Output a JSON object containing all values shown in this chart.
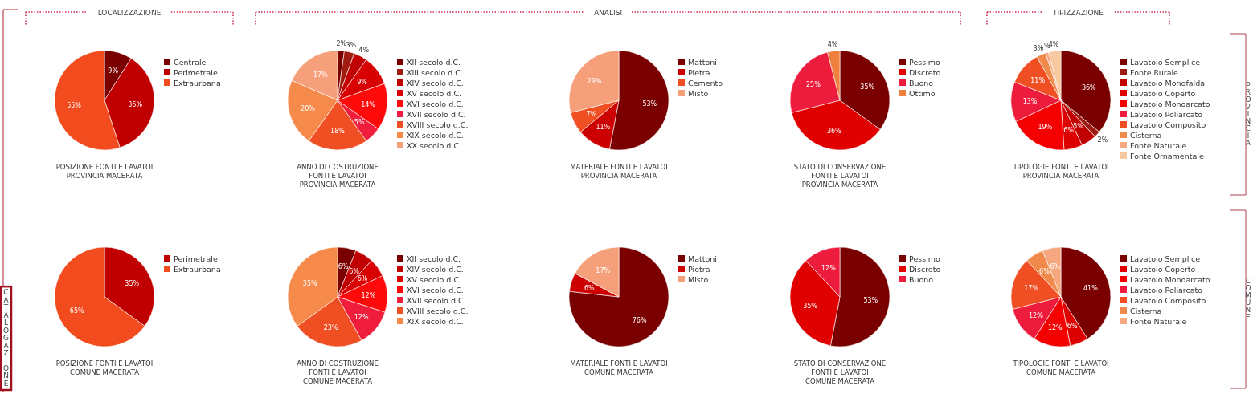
{
  "chart_data": [
    {
      "type": "pie",
      "title": "POSIZIONE FONTI E LAVATOI\nPROVINCIA MACERATA",
      "annotations": [
        "LOCALIZZAZIONE",
        "CATALOGAZIONE"
      ],
      "legend": "right",
      "categories": [
        "Centrale",
        "Perimetrale",
        "Extraurbana"
      ],
      "values": [
        9,
        36,
        55
      ],
      "value_labels": [
        "9%",
        "36%",
        "55%"
      ],
      "colors": [
        "#7a0000",
        "#c00000",
        "#f24b1e"
      ]
    },
    {
      "type": "pie",
      "title": "ANNO DI COSTRUZIONE\nFONTI E LAVATOI\nPROVINCIA MACERATA",
      "annotations": [
        "ANALISI"
      ],
      "legend": "right",
      "categories": [
        "XII secolo d.C.",
        "XIII secolo d.C.",
        "XIV secolo d.C.",
        "XV secolo d.C.",
        "XVI secolo d.C.",
        "XVII secolo d.C.",
        "XVIII secolo d.C.",
        "XIX secolo d.C.",
        "XX secolo d.C."
      ],
      "values": [
        2,
        3,
        4,
        9,
        14,
        5,
        18,
        20,
        17
      ],
      "value_labels": [
        "2%",
        "3%",
        "4%",
        "9%",
        "14%",
        "5%",
        "18%",
        "20%",
        "17%"
      ],
      "colors": [
        "#7a0000",
        "#a01c10",
        "#c00000",
        "#d80000",
        "#ff0a0a",
        "#f01e3c",
        "#f04e23",
        "#f58a4b",
        "#f5a07a"
      ]
    },
    {
      "type": "pie",
      "title": "MATERIALE FONTI E LAVATOI\nPROVINCIA MACERATA",
      "legend": "right",
      "categories": [
        "Mattoni",
        "Pietra",
        "Cemento",
        "Misto"
      ],
      "values": [
        53,
        11,
        7,
        29
      ],
      "value_labels": [
        "53%",
        "11%",
        "7%",
        "29%"
      ],
      "colors": [
        "#7a0000",
        "#cc0000",
        "#f04e23",
        "#f5a07a"
      ]
    },
    {
      "type": "pie",
      "title": "STATO DI CONSERVAZIONE\nFONTI E LAVATOI\nPROVINCIA MACERATA",
      "legend": "right",
      "categories": [
        "Pessimo",
        "Discreto",
        "Buono",
        "Ottimo"
      ],
      "values": [
        35,
        36,
        25,
        4
      ],
      "value_labels": [
        "35%",
        "36%",
        "25%",
        "4%"
      ],
      "colors": [
        "#7a0000",
        "#e00000",
        "#ee1c3c",
        "#f08040"
      ]
    },
    {
      "type": "pie",
      "title": "TIPOLOGIE FONTI E LAVATOI\nPROVINCIA MACERATA",
      "annotations": [
        "TIPIZZAZIONE",
        "PROVINCIA"
      ],
      "legend": "right",
      "categories": [
        "Lavatoio Semplice",
        "Fonte Rurale",
        "Lavatoio Monofalda",
        "Lavatoio Coperto",
        "Lavatoio Monoarcato",
        "Lavatoio Poliarcato",
        "Lavatoio Composito",
        "Cisterna",
        "Fonte Naturale",
        "Fonte Ornamentale"
      ],
      "values": [
        36,
        2,
        5,
        6,
        19,
        13,
        11,
        3,
        1,
        4
      ],
      "value_labels": [
        "36%",
        "2%",
        "5%",
        "6%",
        "19%",
        "13%",
        "11%",
        "3%",
        "1%",
        "4%"
      ],
      "colors": [
        "#7a0000",
        "#9b1b12",
        "#c00000",
        "#dc0000",
        "#f50000",
        "#ee1c3c",
        "#f04e23",
        "#f08a4b",
        "#f5a880",
        "#f8c8a0"
      ]
    },
    {
      "type": "pie",
      "title": "POSIZIONE FONTI E LAVATOI\nCOMUNE MACERATA",
      "legend": "right",
      "categories": [
        "Perimetrale",
        "Extraurbana"
      ],
      "values": [
        35,
        65
      ],
      "value_labels": [
        "35%",
        "65%"
      ],
      "colors": [
        "#c00000",
        "#f24b1e"
      ]
    },
    {
      "type": "pie",
      "title": "ANNO DI COSTRUZIONE\nFONTI E LAVATOI\nCOMUNE MACERATA",
      "legend": "right",
      "categories": [
        "XII secolo d.C.",
        "XIV secolo d.C.",
        "XV secolo d.C.",
        "XVI secolo d.C.",
        "XVII secolo d.C.",
        "XVIII secolo d.C.",
        "XIX secolo d.C."
      ],
      "values": [
        6,
        6,
        6,
        12,
        12,
        23,
        35
      ],
      "value_labels": [
        "6%",
        "6%",
        "6%",
        "12%",
        "12%",
        "23%",
        "35%"
      ],
      "colors": [
        "#7a0000",
        "#c00000",
        "#d80000",
        "#ff0a0a",
        "#f01e3c",
        "#f04e23",
        "#f58a4b"
      ]
    },
    {
      "type": "pie",
      "title": "MATERIALE FONTI E LAVATOI\nCOMUNE MACERATA",
      "legend": "right",
      "categories": [
        "Mattoni",
        "Pietra",
        "Misto"
      ],
      "values": [
        76,
        6,
        17
      ],
      "value_labels": [
        "76%",
        "6%",
        "17%"
      ],
      "colors": [
        "#7a0000",
        "#cc0000",
        "#f5a07a"
      ]
    },
    {
      "type": "pie",
      "title": "STATO DI CONSERVAZIONE\nFONTI E LAVATOI\nCOMUNE MACERATA",
      "legend": "right",
      "categories": [
        "Pessimo",
        "Discreto",
        "Buono"
      ],
      "values": [
        53,
        35,
        12
      ],
      "value_labels": [
        "53%",
        "35%",
        "12%"
      ],
      "colors": [
        "#7a0000",
        "#e00000",
        "#ee1c3c"
      ]
    },
    {
      "type": "pie",
      "title": "TIPOLOGIE FONTI E LAVATOI\nCOMUNE MACERATA",
      "annotations": [
        "COMUNE"
      ],
      "legend": "right",
      "categories": [
        "Lavatoio Semplice",
        "Lavatoio Coperto",
        "Lavatoio Monoarcato",
        "Lavatoio Poliarcato",
        "Lavatoio Composito",
        "Cisterna",
        "Fonte Naturale"
      ],
      "values": [
        41,
        6,
        12,
        12,
        17,
        6,
        6
      ],
      "value_labels": [
        "41%",
        "6%",
        "12%",
        "12%",
        "17%",
        "6%",
        "6%"
      ],
      "colors": [
        "#7a0000",
        "#dc0000",
        "#f50000",
        "#ee1c3c",
        "#f04e23",
        "#f08a4b",
        "#f5a880"
      ]
    }
  ]
}
